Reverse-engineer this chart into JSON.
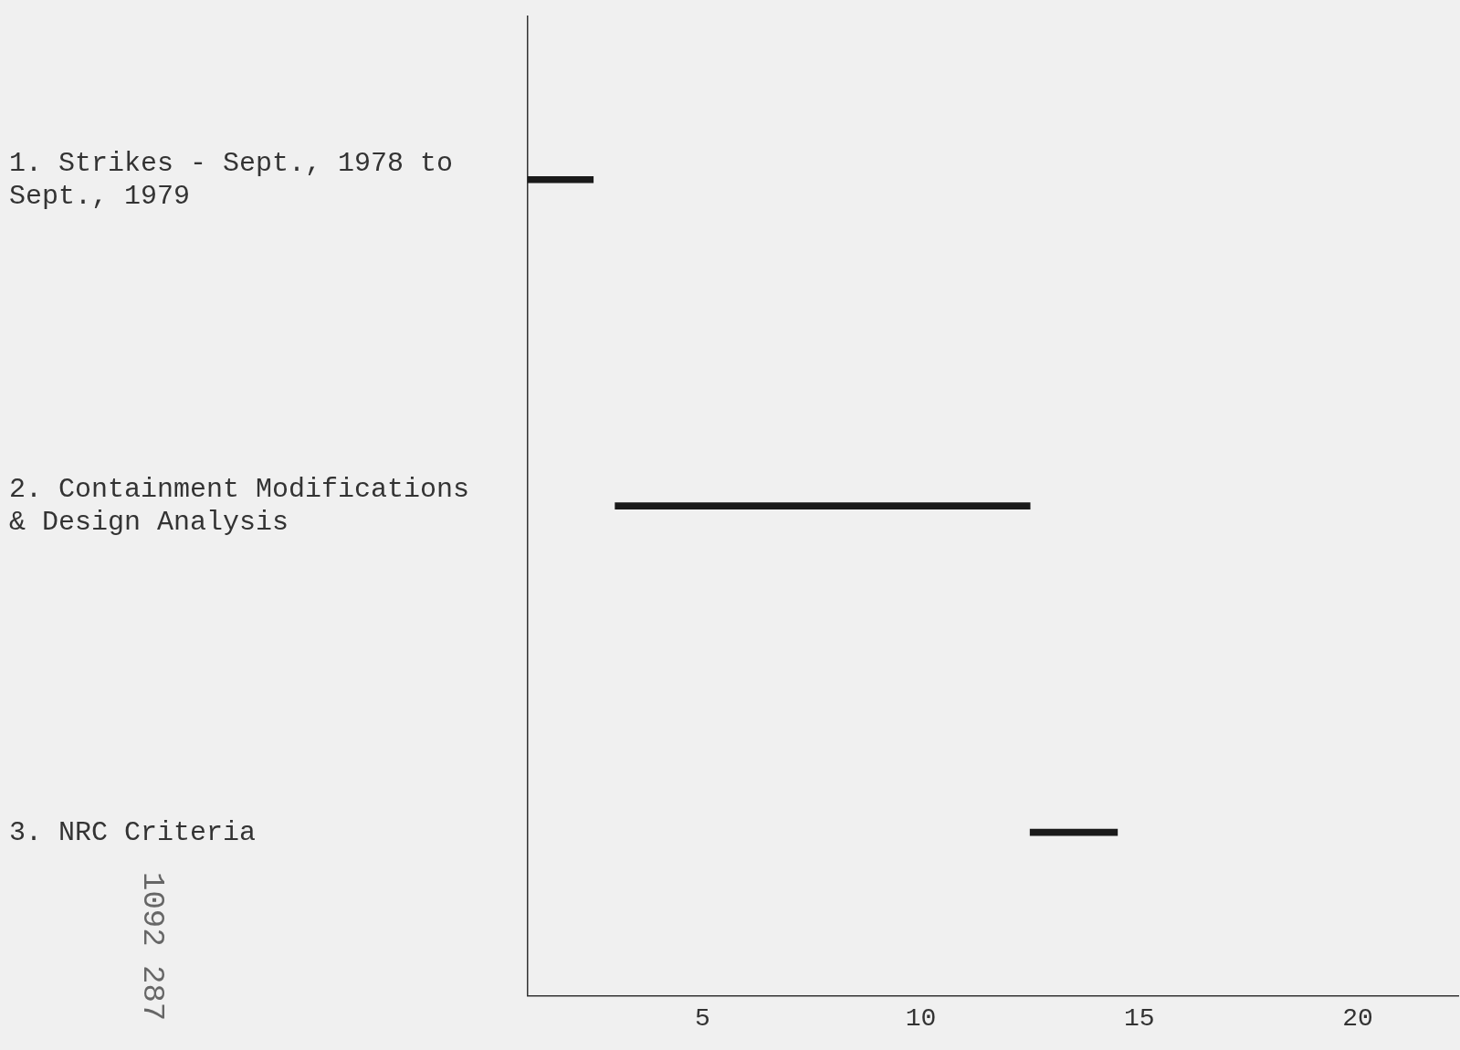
{
  "chart_data": {
    "type": "bar",
    "orientation": "horizontal",
    "categories": [
      "1. Strikes - Sept., 1978 to Sept., 1979",
      "2. Containment Modifications & Design Analysis",
      "3. NRC Criteria"
    ],
    "base": [
      1,
      3,
      12.5
    ],
    "values": [
      1.5,
      9.5,
      2
    ],
    "color": "#1a1a1a",
    "xlim": [
      1,
      22.3
    ],
    "xticks": [
      5,
      10,
      15,
      20
    ],
    "grid": false,
    "legend": false,
    "annotations": [
      "1092 287"
    ]
  }
}
